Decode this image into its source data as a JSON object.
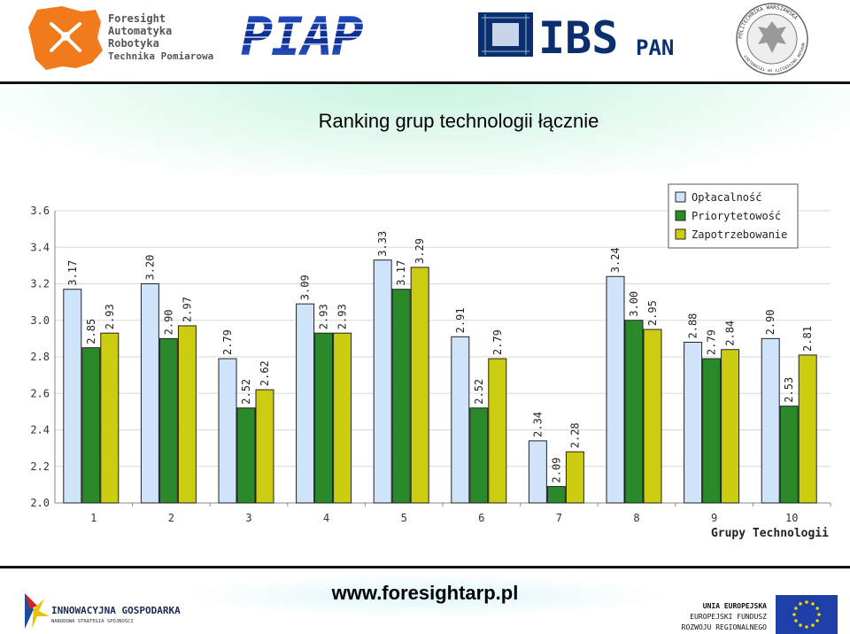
{
  "header": {
    "logo_foresight_lines": [
      "Foresight",
      "Automatyka",
      "Robotyka",
      "Technika Pomiarowa"
    ],
    "logo_piap": "PIAP",
    "logo_ibs": "IBS",
    "logo_pan": "PAN",
    "logo_pw_ring": "POLITECHNIKA WARSZAWSKA",
    "logo_pw_ring_bottom": "WARSAW UNIVERSITY OF TECHNOLOGY"
  },
  "title": "Ranking grup technologii łącznie",
  "chart_data": {
    "type": "bar",
    "categories": [
      "1",
      "2",
      "3",
      "4",
      "5",
      "6",
      "7",
      "8",
      "9",
      "10"
    ],
    "xlabel": "Grupy Technologii",
    "ylabel": "",
    "ylim": [
      2.0,
      3.6
    ],
    "yticks": [
      "2.0",
      "2.2",
      "2.4",
      "2.6",
      "2.8",
      "3.0",
      "3.2",
      "3.4",
      "3.6"
    ],
    "grid": true,
    "legend_position": "top-right",
    "series": [
      {
        "name": "Opłacalność",
        "color": "#cfe3fa",
        "values": [
          3.17,
          3.2,
          2.79,
          3.09,
          3.33,
          2.91,
          2.34,
          3.24,
          2.88,
          2.9
        ],
        "labels": [
          "3.17",
          "3.20",
          "2.79",
          "3.09",
          "3.33",
          "2.91",
          "2.34",
          "3.24",
          "2.88",
          "2.90"
        ]
      },
      {
        "name": "Priorytetowość",
        "color": "#2a8a2a",
        "values": [
          2.85,
          2.9,
          2.52,
          2.93,
          3.17,
          2.52,
          2.09,
          3.0,
          2.79,
          2.53
        ],
        "labels": [
          "2.85",
          "2.90",
          "2.52",
          "2.93",
          "3.17",
          "2.52",
          "2.09",
          "3.00",
          "2.79",
          "2.53"
        ]
      },
      {
        "name": "Zapotrzebowanie",
        "color": "#cccc10",
        "values": [
          2.93,
          2.97,
          2.62,
          2.93,
          3.29,
          2.79,
          2.28,
          2.95,
          2.84,
          2.81
        ],
        "labels": [
          "2.93",
          "2.97",
          "2.62",
          "2.93",
          "3.29",
          "2.79",
          "2.28",
          "2.95",
          "2.84",
          "2.81"
        ]
      }
    ]
  },
  "footer": {
    "url": "www.foresightarp.pl",
    "ig_line1": "INNOWACYJNA GOSPODARKA",
    "ig_line2": "NARODOWA STRATEGIA SPÓJNOŚCI",
    "eu_line1": "UNIA EUROPEJSKA",
    "eu_line2": "EUROPEJSKI FUNDUSZ",
    "eu_line3": "ROZWOJU REGIONALNEGO"
  }
}
